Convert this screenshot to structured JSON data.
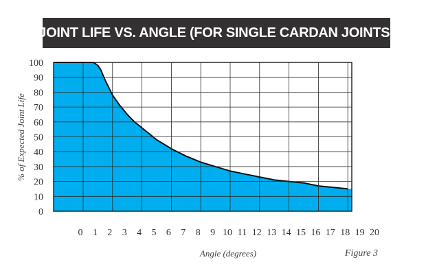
{
  "chart_data": {
    "type": "area",
    "title": "JOINT LIFE VS. ANGLE (FOR SINGLE CARDAN JOINTS)",
    "xlabel": "Angle (degrees)",
    "ylabel": "% of Expected Joint Life",
    "figure_label": "Figure 3",
    "xlim": [
      -2,
      20
    ],
    "ylim": [
      0,
      100
    ],
    "x_ticks": [
      0,
      1,
      2,
      3,
      4,
      5,
      6,
      7,
      8,
      9,
      10,
      11,
      12,
      13,
      14,
      15,
      16,
      17,
      18,
      19,
      20
    ],
    "y_ticks": [
      0,
      10,
      20,
      30,
      40,
      50,
      60,
      70,
      80,
      90,
      100
    ],
    "grid": true,
    "fill_color": "#00AEEF",
    "series": [
      {
        "name": "Joint life",
        "x": [
          -2,
          0,
          0.5,
          0.7,
          0.85,
          1,
          1.2,
          1.5,
          2,
          2.5,
          3,
          3.5,
          4,
          5,
          6,
          7,
          8,
          9,
          10,
          11,
          12,
          13,
          14,
          15,
          16,
          17,
          18
        ],
        "y": [
          100,
          100,
          100,
          100,
          99,
          98,
          95,
          88,
          78,
          71,
          65,
          60,
          56,
          48,
          42,
          37,
          33,
          30,
          27,
          25,
          23,
          21,
          20,
          19,
          17,
          16,
          15
        ]
      }
    ]
  }
}
